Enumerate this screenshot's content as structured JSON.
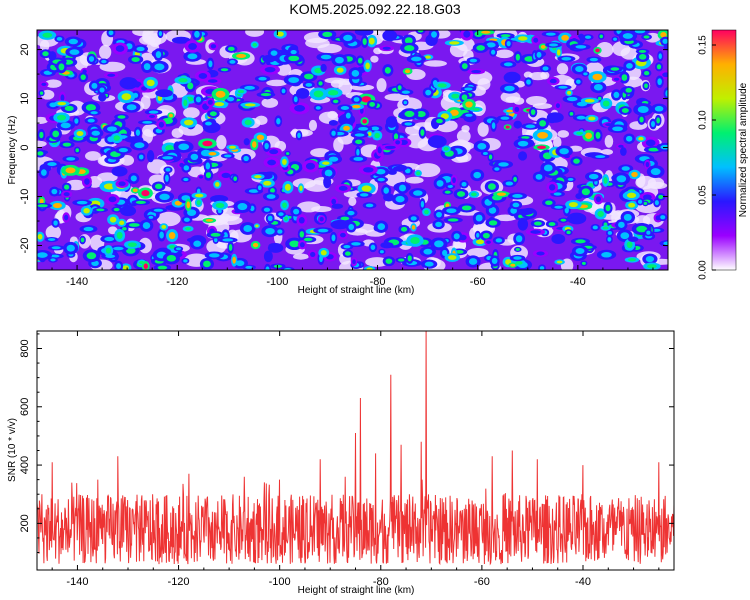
{
  "figure_title": "KOM5.2025.092.22.18.G03",
  "chart_data": [
    {
      "type": "heatmap",
      "xlabel": "Height of straight line (km)",
      "ylabel": "Frequency (Hz)",
      "xlim": [
        -148,
        -22
      ],
      "ylim": [
        -25,
        24
      ],
      "x_ticks": [
        -140,
        -120,
        -100,
        -80,
        -60,
        -40
      ],
      "y_ticks": [
        -20,
        -10,
        0,
        10,
        20
      ],
      "colorbar": {
        "label": "Normalized spectral amplitude",
        "range": [
          0,
          0.16
        ],
        "ticks": [
          "0.00",
          "0.05",
          "0.10",
          "0.15"
        ],
        "colors": [
          "#ffffff",
          "#9a00ff",
          "#2a18ff",
          "#00c0ff",
          "#00f070",
          "#c0f000",
          "#ffb000",
          "#ff0060"
        ]
      },
      "grid": false,
      "description_values": "speckled noise field, mostly 0.02–0.06 with scattered peaks up to ~0.14"
    },
    {
      "type": "line",
      "xlabel": "Height of straight line (km)",
      "ylabel": "SNR (10 * v/v)",
      "xlim": [
        -148,
        -22
      ],
      "ylim": [
        40,
        860
      ],
      "x_ticks": [
        -140,
        -120,
        -100,
        -80,
        -60,
        -40
      ],
      "y_ticks": [
        200,
        400,
        600,
        800
      ],
      "color": "#ee3333",
      "baseline": 150,
      "noise_band": [
        60,
        300
      ],
      "peaks": [
        {
          "x": -147,
          "y": 300
        },
        {
          "x": -145,
          "y": 410
        },
        {
          "x": -136,
          "y": 350
        },
        {
          "x": -132,
          "y": 430
        },
        {
          "x": -118,
          "y": 370
        },
        {
          "x": -107,
          "y": 360
        },
        {
          "x": -100,
          "y": 350
        },
        {
          "x": -92,
          "y": 420
        },
        {
          "x": -87,
          "y": 360
        },
        {
          "x": -85,
          "y": 510
        },
        {
          "x": -84,
          "y": 630
        },
        {
          "x": -81,
          "y": 440
        },
        {
          "x": -78,
          "y": 710
        },
        {
          "x": -76,
          "y": 470
        },
        {
          "x": -72,
          "y": 480
        },
        {
          "x": -71,
          "y": 860
        },
        {
          "x": -58,
          "y": 430
        },
        {
          "x": -54,
          "y": 450
        },
        {
          "x": -49,
          "y": 420
        },
        {
          "x": -40,
          "y": 400
        },
        {
          "x": -25,
          "y": 410
        }
      ]
    }
  ]
}
